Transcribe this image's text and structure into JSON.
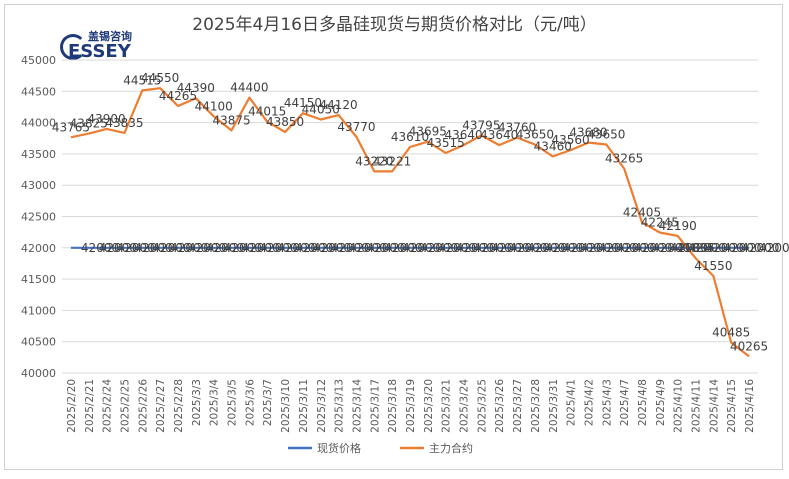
{
  "title": "2025年4月16日多晶硅现货与期货价格对比（元/吨）",
  "logo": {
    "cn": "盖锡咨询",
    "en": "ESSEY"
  },
  "chart_data": {
    "type": "line",
    "title": "2025年4月16日多晶硅现货与期货价格对比（元/吨）",
    "xlabel": "",
    "ylabel": "",
    "ylim": [
      40000,
      45000
    ],
    "y_ticks": [
      40000,
      40500,
      41000,
      41500,
      42000,
      42500,
      43000,
      43500,
      44000,
      44500,
      45000
    ],
    "legend_position": "bottom",
    "grid": true,
    "categories": [
      "2025/2/20",
      "2025/2/21",
      "2025/2/24",
      "2025/2/25",
      "2025/2/26",
      "2025/2/27",
      "2025/2/28",
      "2025/3/3",
      "2025/3/4",
      "2025/3/5",
      "2025/3/6",
      "2025/3/7",
      "2025/3/10",
      "2025/3/11",
      "2025/3/12",
      "2025/3/13",
      "2025/3/14",
      "2025/3/17",
      "2025/3/18",
      "2025/3/19",
      "2025/3/20",
      "2025/3/21",
      "2025/3/24",
      "2025/3/25",
      "2025/3/26",
      "2025/3/27",
      "2025/3/28",
      "2025/3/31",
      "2025/4/1",
      "2025/4/2",
      "2025/4/3",
      "2025/4/7",
      "2025/4/8",
      "2025/4/9",
      "2025/4/10",
      "2025/4/11",
      "2025/4/14",
      "2025/4/15",
      "2025/4/16"
    ],
    "series": [
      {
        "name": "现货价格",
        "color": "#4472C4",
        "values": [
          42000,
          42000,
          42000,
          42000,
          42000,
          42000,
          42000,
          42000,
          42000,
          42000,
          42000,
          42000,
          42000,
          42000,
          42000,
          42000,
          42000,
          42000,
          42000,
          42000,
          42000,
          42000,
          42000,
          42000,
          42000,
          42000,
          42000,
          42000,
          42000,
          42000,
          42000,
          42000,
          42000,
          42000,
          42000,
          42000,
          42000,
          42000,
          42000
        ]
      },
      {
        "name": "主力合约",
        "color": "#ED7D31",
        "values": [
          43765,
          43825,
          43900,
          43835,
          44515,
          44550,
          44265,
          44390,
          44100,
          43875,
          44400,
          44015,
          43850,
          44150,
          44050,
          44120,
          43770,
          43220,
          43221,
          43610,
          43695,
          43515,
          43640,
          43795,
          43640,
          43760,
          43650,
          43460,
          43560,
          43680,
          43650,
          43265,
          42405,
          42245,
          42190,
          41835,
          41550,
          40485,
          40265
        ]
      }
    ]
  }
}
